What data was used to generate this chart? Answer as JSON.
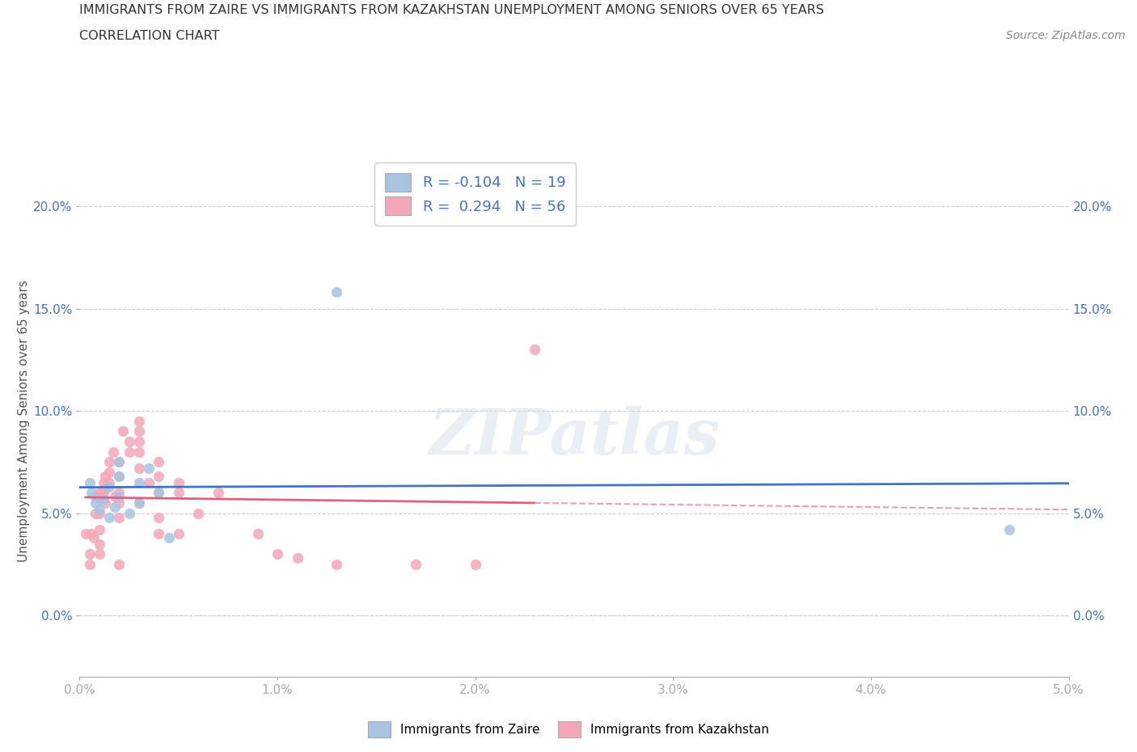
{
  "title_line1": "IMMIGRANTS FROM ZAIRE VS IMMIGRANTS FROM KAZAKHSTAN UNEMPLOYMENT AMONG SENIORS OVER 65 YEARS",
  "title_line2": "CORRELATION CHART",
  "source": "Source: ZipAtlas.com",
  "ylabel": "Unemployment Among Seniors over 65 years",
  "watermark": "ZIPatlas",
  "zaire_color": "#a8c4e0",
  "kazakhstan_color": "#f4a7b9",
  "zaire_line_color": "#4472c4",
  "kazakhstan_line_color": "#e06080",
  "kazakhstan_dash_color": "#e8a0b0",
  "background_color": "#ffffff",
  "grid_color": "#cccccc",
  "xlim": [
    0.0,
    0.05
  ],
  "ylim": [
    -0.03,
    0.22
  ],
  "xticks": [
    0.0,
    0.01,
    0.02,
    0.03,
    0.04,
    0.05
  ],
  "yticks": [
    0.0,
    0.05,
    0.1,
    0.15,
    0.2
  ],
  "zaire_x": [
    0.0005,
    0.0006,
    0.0008,
    0.001,
    0.0012,
    0.0015,
    0.0015,
    0.0018,
    0.002,
    0.002,
    0.002,
    0.0025,
    0.003,
    0.003,
    0.0035,
    0.004,
    0.0045,
    0.013,
    0.047
  ],
  "zaire_y": [
    0.065,
    0.06,
    0.055,
    0.052,
    0.057,
    0.063,
    0.048,
    0.053,
    0.075,
    0.068,
    0.058,
    0.05,
    0.065,
    0.055,
    0.072,
    0.06,
    0.038,
    0.158,
    0.042
  ],
  "kazakhstan_x": [
    0.0003,
    0.0005,
    0.0005,
    0.0006,
    0.0007,
    0.0008,
    0.0008,
    0.001,
    0.001,
    0.001,
    0.001,
    0.001,
    0.001,
    0.0012,
    0.0012,
    0.0013,
    0.0013,
    0.0013,
    0.0015,
    0.0015,
    0.0015,
    0.0017,
    0.0018,
    0.002,
    0.002,
    0.002,
    0.002,
    0.002,
    0.002,
    0.0022,
    0.0025,
    0.0025,
    0.003,
    0.003,
    0.003,
    0.003,
    0.003,
    0.003,
    0.0035,
    0.004,
    0.004,
    0.004,
    0.004,
    0.004,
    0.005,
    0.005,
    0.005,
    0.006,
    0.007,
    0.009,
    0.01,
    0.011,
    0.013,
    0.017,
    0.02,
    0.023
  ],
  "kazakhstan_y": [
    0.04,
    0.03,
    0.025,
    0.04,
    0.038,
    0.058,
    0.05,
    0.06,
    0.057,
    0.05,
    0.042,
    0.035,
    0.03,
    0.065,
    0.06,
    0.068,
    0.062,
    0.055,
    0.075,
    0.07,
    0.065,
    0.08,
    0.058,
    0.075,
    0.068,
    0.06,
    0.055,
    0.048,
    0.025,
    0.09,
    0.085,
    0.08,
    0.085,
    0.095,
    0.09,
    0.08,
    0.072,
    0.055,
    0.065,
    0.075,
    0.068,
    0.06,
    0.048,
    0.04,
    0.065,
    0.06,
    0.04,
    0.05,
    0.06,
    0.04,
    0.03,
    0.028,
    0.025,
    0.025,
    0.025,
    0.13
  ]
}
